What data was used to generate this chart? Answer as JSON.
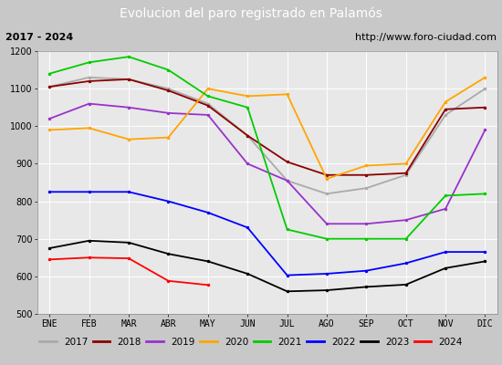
{
  "title": "Evolucion del paro registrado en Palamós",
  "subtitle_left": "2017 - 2024",
  "subtitle_right": "http://www.foro-ciudad.com",
  "title_bg_color": "#4472c4",
  "title_text_color": "white",
  "subtitle_bg_color": "#e0e0e0",
  "plot_bg_color": "#e8e8e8",
  "outer_bg_color": "#c8c8c8",
  "months": [
    "ENE",
    "FEB",
    "MAR",
    "ABR",
    "MAY",
    "JUN",
    "JUL",
    "AGO",
    "SEP",
    "OCT",
    "NOV",
    "DIC"
  ],
  "ylim": [
    500,
    1200
  ],
  "yticks": [
    500,
    600,
    700,
    800,
    900,
    1000,
    1100,
    1200
  ],
  "series": {
    "2017": {
      "color": "#aaaaaa",
      "values": [
        1105,
        1130,
        1125,
        1100,
        1060,
        975,
        855,
        820,
        835,
        870,
        1030,
        1100
      ]
    },
    "2018": {
      "color": "#8b0000",
      "values": [
        1105,
        1120,
        1125,
        1095,
        1055,
        975,
        905,
        870,
        870,
        875,
        1045,
        1050
      ]
    },
    "2019": {
      "color": "#9932cc",
      "values": [
        1020,
        1060,
        1050,
        1035,
        1030,
        900,
        855,
        740,
        740,
        750,
        780,
        990
      ]
    },
    "2020": {
      "color": "#ffa500",
      "values": [
        990,
        995,
        965,
        970,
        1100,
        1080,
        1085,
        860,
        895,
        900,
        1065,
        1130
      ]
    },
    "2021": {
      "color": "#00cc00",
      "values": [
        1140,
        1170,
        1185,
        1150,
        1080,
        1050,
        725,
        700,
        700,
        700,
        815,
        820
      ]
    },
    "2022": {
      "color": "#0000ff",
      "values": [
        825,
        825,
        825,
        800,
        770,
        730,
        603,
        607,
        615,
        635,
        665,
        665
      ]
    },
    "2023": {
      "color": "#000000",
      "values": [
        675,
        695,
        690,
        660,
        640,
        607,
        560,
        563,
        572,
        578,
        622,
        640
      ]
    },
    "2024": {
      "color": "#ff0000",
      "values": [
        645,
        650,
        648,
        588,
        577,
        null,
        null,
        null,
        null,
        null,
        null,
        null
      ]
    }
  }
}
